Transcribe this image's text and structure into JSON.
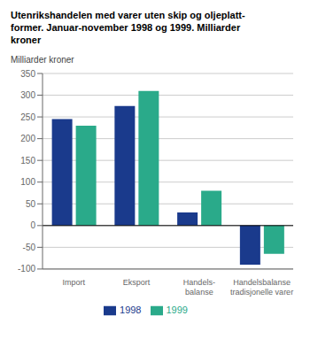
{
  "chart_data": {
    "type": "bar",
    "title": "Utenrikshandelen med varer uten skip og oljeplatt-\nformer. Januar-november 1998 og 1999. Milliarder\nkroner",
    "ylabel": "Milliarder kroner",
    "categories": [
      "Import",
      "Eksport",
      "Handels-\nbalanse",
      "Handelsbalanse\ntradisjonelle varer"
    ],
    "series": [
      {
        "name": "1998",
        "color": "#1a3a8c",
        "values": [
          245,
          275,
          30,
          -90
        ]
      },
      {
        "name": "1999",
        "color": "#2aaa8a",
        "values": [
          230,
          310,
          80,
          -65
        ]
      }
    ],
    "ylim": [
      -100,
      350
    ],
    "yticks": [
      -100,
      -50,
      0,
      50,
      100,
      150,
      200,
      250,
      300,
      350
    ],
    "grid": true,
    "legend": "bottom"
  }
}
